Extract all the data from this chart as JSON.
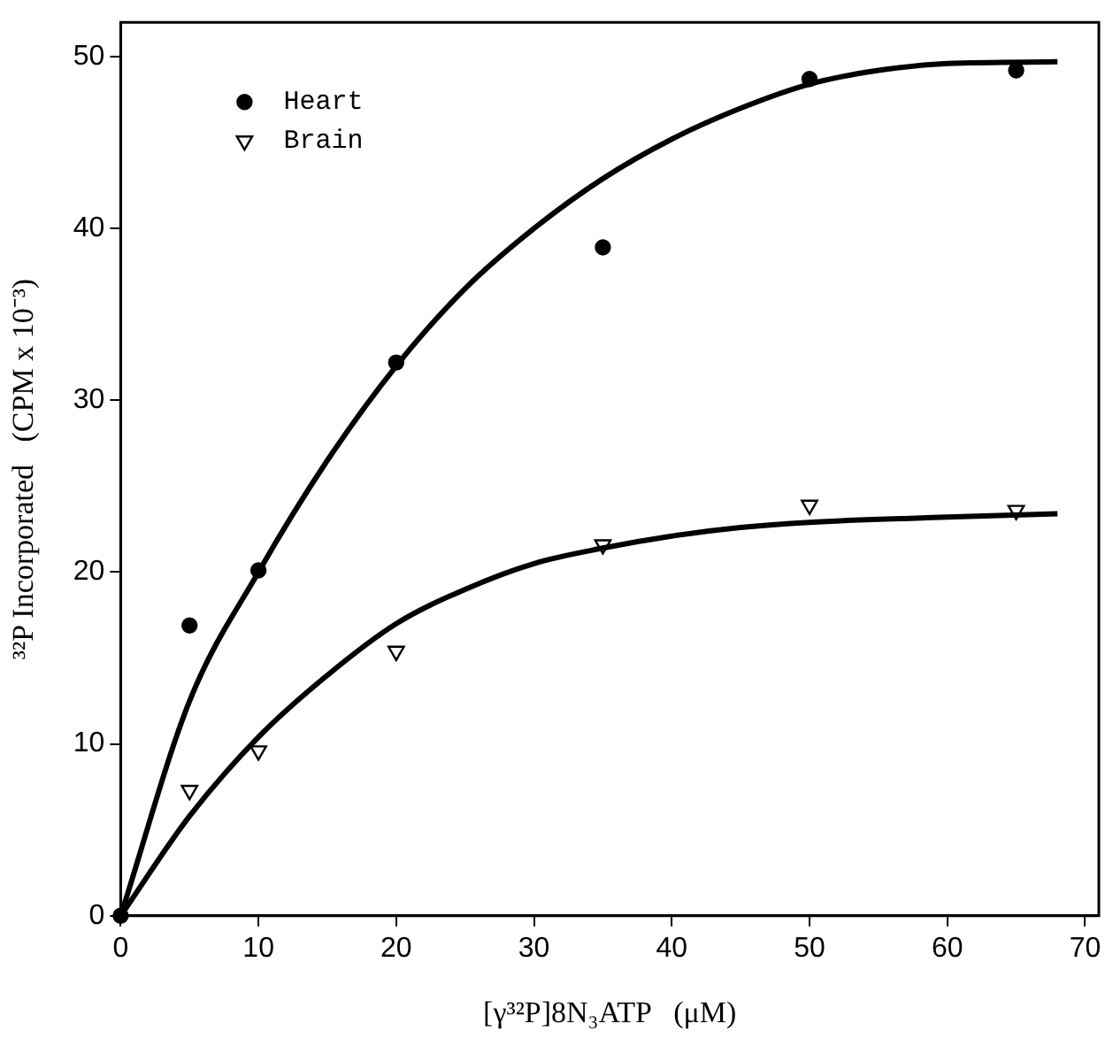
{
  "chart_data": {
    "type": "scatter",
    "xlabel": "[γ³²P]8N₃ATP   (μM)",
    "ylabel": "³²P Incorporated   (CPM x 10⁻³)",
    "xlim": [
      0,
      71
    ],
    "xticks": [
      0,
      10,
      20,
      30,
      40,
      50,
      60,
      70
    ],
    "ylim": [
      0,
      52
    ],
    "yticks": [
      0,
      10,
      20,
      30,
      40,
      50
    ],
    "grid": false,
    "legend": "top left",
    "series": [
      {
        "name": "Heart",
        "color": "#000000",
        "marker": "circle",
        "x": [
          0,
          5,
          10,
          20,
          35,
          50,
          65
        ],
        "values": [
          0,
          16.9,
          20.1,
          32.2,
          38.9,
          48.7,
          49.2
        ]
      },
      {
        "name": "Brain",
        "color": "#000000",
        "marker": "triangle",
        "x": [
          5,
          10,
          20,
          35,
          50,
          65
        ],
        "values": [
          7.3,
          9.6,
          15.4,
          21.6,
          23.9,
          23.6
        ]
      },
      {
        "type": "line",
        "color": "#000000",
        "marker": "none",
        "x": [
          0,
          5,
          10,
          15,
          20,
          25,
          30,
          35,
          40,
          45,
          50,
          55,
          60,
          68
        ],
        "values": [
          0,
          12.5,
          20,
          26.5,
          32,
          36.5,
          40,
          42.9,
          45.2,
          47,
          48.4,
          49.2,
          49.6,
          49.7
        ]
      },
      {
        "type": "line",
        "color": "#000000",
        "marker": "none",
        "x": [
          0,
          5,
          10,
          15,
          20,
          25,
          30,
          35,
          40,
          45,
          50,
          60,
          68
        ],
        "values": [
          0,
          5.8,
          10.4,
          14,
          17,
          19,
          20.5,
          21.4,
          22.1,
          22.6,
          22.9,
          23.2,
          23.4
        ]
      }
    ]
  }
}
